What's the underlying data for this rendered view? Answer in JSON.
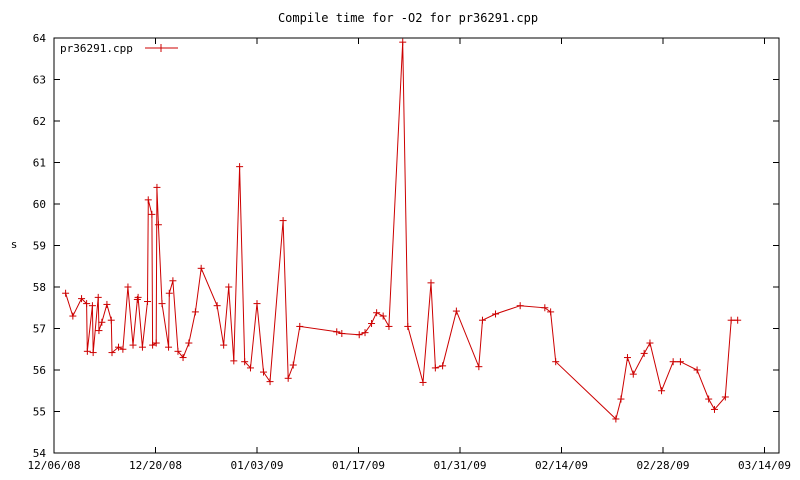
{
  "chart_data": {
    "type": "line",
    "title": "Compile time for -O2 for pr36291.cpp",
    "xlabel": "",
    "ylabel": "s",
    "ylim": [
      54,
      64
    ],
    "yticks": [
      54,
      55,
      56,
      57,
      58,
      59,
      60,
      61,
      62,
      63,
      64
    ],
    "xticks": [
      "12/06/08",
      "12/20/08",
      "01/03/09",
      "01/17/09",
      "01/31/09",
      "02/14/09",
      "02/28/09",
      "03/14/09"
    ],
    "legend_position": "top-left",
    "grid": false,
    "colors": {
      "series": "#cc0000",
      "axis": "#000000"
    },
    "series": [
      {
        "name": "pr36291.cpp",
        "points": [
          [
            1.6,
            57.85
          ],
          [
            2.6,
            57.3
          ],
          [
            3.8,
            57.72
          ],
          [
            4.5,
            57.6
          ],
          [
            4.6,
            56.45
          ],
          [
            5.3,
            57.55
          ],
          [
            5.4,
            56.42
          ],
          [
            6.1,
            57.75
          ],
          [
            6.2,
            56.95
          ],
          [
            6.6,
            57.15
          ],
          [
            7.3,
            57.58
          ],
          [
            7.9,
            57.2
          ],
          [
            8.0,
            56.42
          ],
          [
            8.9,
            56.55
          ],
          [
            9.5,
            56.5
          ],
          [
            10.2,
            58.0
          ],
          [
            10.9,
            56.6
          ],
          [
            11.5,
            57.7
          ],
          [
            11.6,
            57.75
          ],
          [
            12.2,
            56.55
          ],
          [
            12.9,
            57.65
          ],
          [
            13.0,
            60.1
          ],
          [
            13.5,
            59.75
          ],
          [
            13.6,
            56.6
          ],
          [
            14.1,
            56.65
          ],
          [
            14.2,
            60.4
          ],
          [
            14.4,
            59.5
          ],
          [
            14.9,
            57.6
          ],
          [
            15.8,
            56.55
          ],
          [
            15.9,
            57.85
          ],
          [
            16.4,
            58.15
          ],
          [
            17.1,
            56.45
          ],
          [
            17.8,
            56.3
          ],
          [
            18.6,
            56.65
          ],
          [
            19.5,
            57.4
          ],
          [
            20.3,
            58.45
          ],
          [
            22.5,
            57.55
          ],
          [
            23.4,
            56.6
          ],
          [
            24.1,
            58.0
          ],
          [
            24.8,
            56.22
          ],
          [
            25.6,
            60.9
          ],
          [
            26.3,
            56.2
          ],
          [
            27.1,
            56.05
          ],
          [
            28.0,
            57.6
          ],
          [
            28.9,
            55.95
          ],
          [
            29.8,
            55.72
          ],
          [
            31.6,
            59.6
          ],
          [
            32.3,
            55.8
          ],
          [
            33.0,
            56.12
          ],
          [
            33.9,
            57.05
          ],
          [
            39.0,
            56.92
          ],
          [
            39.7,
            56.88
          ],
          [
            42.1,
            56.85
          ],
          [
            42.9,
            56.9
          ],
          [
            43.8,
            57.12
          ],
          [
            44.5,
            57.38
          ],
          [
            45.4,
            57.3
          ],
          [
            46.2,
            57.05
          ],
          [
            48.1,
            63.9
          ],
          [
            48.8,
            57.05
          ],
          [
            50.9,
            55.7
          ],
          [
            52.0,
            58.1
          ],
          [
            52.6,
            56.05
          ],
          [
            53.6,
            56.1
          ],
          [
            55.5,
            57.42
          ],
          [
            58.6,
            56.08
          ],
          [
            59.1,
            57.2
          ],
          [
            60.9,
            57.35
          ],
          [
            64.3,
            57.55
          ],
          [
            67.7,
            57.5
          ],
          [
            68.5,
            57.4
          ],
          [
            69.2,
            56.2
          ],
          [
            77.5,
            54.82
          ],
          [
            78.2,
            55.3
          ],
          [
            79.1,
            56.3
          ],
          [
            79.9,
            55.9
          ],
          [
            81.4,
            56.4
          ],
          [
            82.2,
            56.65
          ],
          [
            83.8,
            55.5
          ],
          [
            85.4,
            56.2
          ],
          [
            86.4,
            56.2
          ],
          [
            88.7,
            56.0
          ],
          [
            90.3,
            55.3
          ],
          [
            91.1,
            55.05
          ],
          [
            92.6,
            55.35
          ],
          [
            93.4,
            57.2
          ],
          [
            94.3,
            57.2
          ]
        ]
      }
    ]
  }
}
